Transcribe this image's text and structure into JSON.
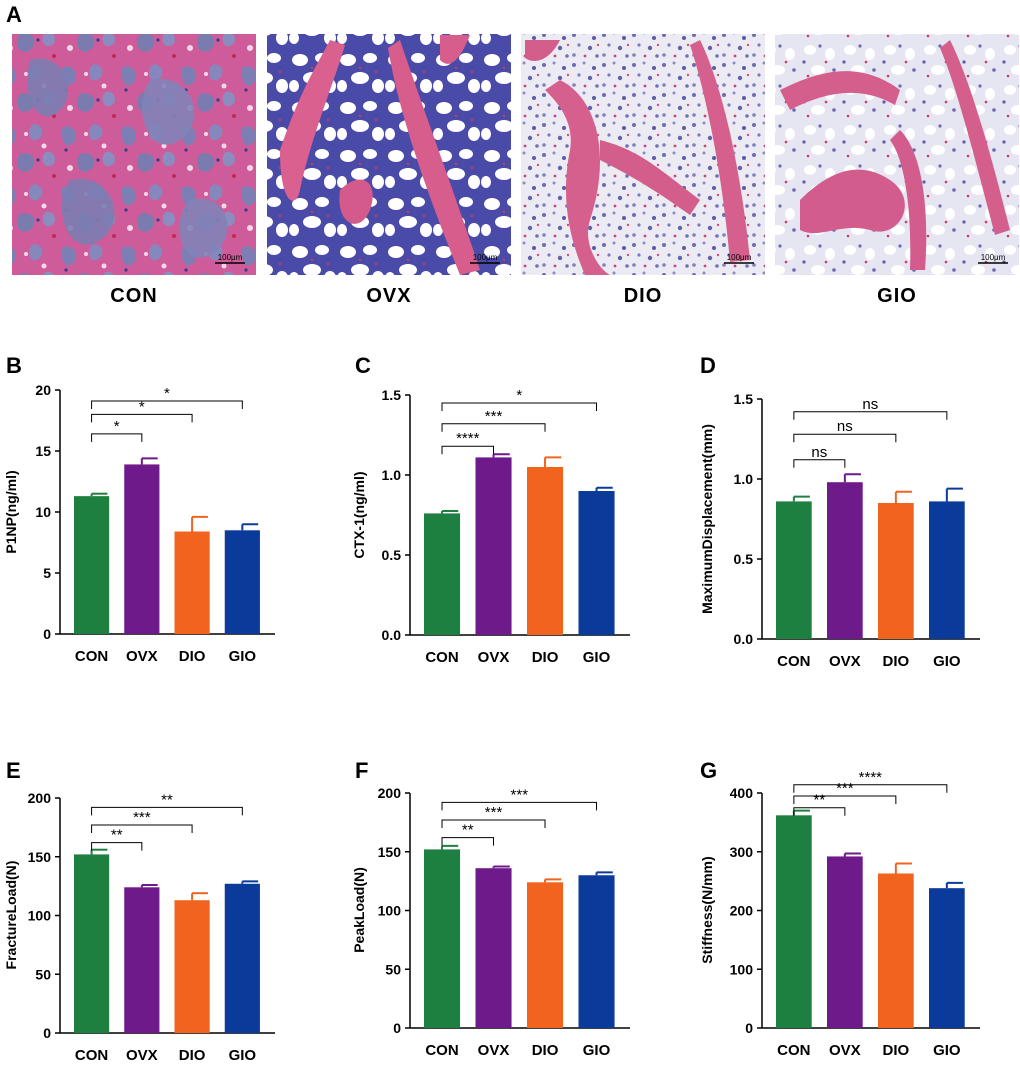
{
  "figure": {
    "panel_a": {
      "letter": "A",
      "images": [
        {
          "label": "CON",
          "scale": "100μm",
          "style": "dense"
        },
        {
          "label": "OVX",
          "scale": "100μm",
          "style": "ovx"
        },
        {
          "label": "DIO",
          "scale": "100μm",
          "style": "dio"
        },
        {
          "label": "GIO",
          "scale": "100μm",
          "style": "gio"
        }
      ]
    },
    "colors": {
      "CON": "#1e8040",
      "OVX": "#6f1a8a",
      "DIO": "#f0641e",
      "GIO": "#0a3a9a"
    }
  },
  "chart_data": [
    {
      "panel": "B",
      "type": "bar",
      "categories": [
        "CON",
        "OVX",
        "DIO",
        "GIO"
      ],
      "values": [
        11.3,
        13.9,
        8.4,
        8.5
      ],
      "errors": [
        0.2,
        0.5,
        1.2,
        0.5
      ],
      "ylabel": "P1NP(ng/ml)",
      "ylim": [
        0,
        20
      ],
      "yticks": [
        0,
        5,
        10,
        15,
        20
      ],
      "comparisons": [
        {
          "from": 0,
          "to": 1,
          "y": 16.4,
          "label": "*"
        },
        {
          "from": 0,
          "to": 2,
          "y": 18.0,
          "label": "*"
        },
        {
          "from": 0,
          "to": 3,
          "y": 19.1,
          "label": "*"
        }
      ]
    },
    {
      "panel": "C",
      "type": "bar",
      "categories": [
        "CON",
        "OVX",
        "DIO",
        "GIO"
      ],
      "values": [
        0.76,
        1.11,
        1.05,
        0.9
      ],
      "errors": [
        0.015,
        0.02,
        0.06,
        0.02
      ],
      "ylabel": "CTX-1(ng/ml)",
      "ylim": [
        0,
        1.5
      ],
      "yticks": [
        "0.0",
        "0.5",
        "1.0",
        "1.5"
      ],
      "comparisons": [
        {
          "from": 0,
          "to": 1,
          "y": 1.18,
          "label": "****"
        },
        {
          "from": 0,
          "to": 2,
          "y": 1.32,
          "label": "***"
        },
        {
          "from": 0,
          "to": 3,
          "y": 1.45,
          "label": "*"
        }
      ]
    },
    {
      "panel": "D",
      "type": "bar",
      "categories": [
        "CON",
        "OVX",
        "DIO",
        "GIO"
      ],
      "values": [
        0.86,
        0.98,
        0.85,
        0.86
      ],
      "errors": [
        0.03,
        0.05,
        0.07,
        0.08
      ],
      "ylabel": "MaximumDisplacement(mm)",
      "ylim": [
        0,
        1.5
      ],
      "yticks": [
        "0.0",
        "0.5",
        "1.0",
        "1.5"
      ],
      "comparisons": [
        {
          "from": 0,
          "to": 1,
          "y": 1.12,
          "label": "ns"
        },
        {
          "from": 0,
          "to": 2,
          "y": 1.28,
          "label": "ns"
        },
        {
          "from": 0,
          "to": 3,
          "y": 1.42,
          "label": "ns"
        }
      ]
    },
    {
      "panel": "E",
      "type": "bar",
      "categories": [
        "CON",
        "OVX",
        "DIO",
        "GIO"
      ],
      "values": [
        152,
        124,
        113,
        127
      ],
      "errors": [
        4,
        2,
        6,
        2
      ],
      "ylabel": "FractureLoad(N)",
      "ylim": [
        0,
        200
      ],
      "yticks": [
        0,
        50,
        100,
        150,
        200
      ],
      "comparisons": [
        {
          "from": 0,
          "to": 1,
          "y": 162,
          "label": "**"
        },
        {
          "from": 0,
          "to": 2,
          "y": 177,
          "label": "***"
        },
        {
          "from": 0,
          "to": 3,
          "y": 192,
          "label": "**"
        }
      ]
    },
    {
      "panel": "F",
      "type": "bar",
      "categories": [
        "CON",
        "OVX",
        "DIO",
        "GIO"
      ],
      "values": [
        152,
        136,
        124,
        130
      ],
      "errors": [
        3,
        1.5,
        2.5,
        2.5
      ],
      "ylabel": "PeakLoad(N)",
      "ylim": [
        0,
        200
      ],
      "yticks": [
        0,
        50,
        100,
        150,
        200
      ],
      "comparisons": [
        {
          "from": 0,
          "to": 1,
          "y": 162,
          "label": "**"
        },
        {
          "from": 0,
          "to": 2,
          "y": 177,
          "label": "***"
        },
        {
          "from": 0,
          "to": 3,
          "y": 192,
          "label": "***"
        }
      ]
    },
    {
      "panel": "G",
      "type": "bar",
      "categories": [
        "CON",
        "OVX",
        "DIO",
        "GIO"
      ],
      "values": [
        362,
        292,
        263,
        238
      ],
      "errors": [
        8,
        5,
        17,
        9
      ],
      "ylabel": "Stiffness(N/mm)",
      "ylim": [
        0,
        400
      ],
      "yticks": [
        0,
        100,
        200,
        300,
        400
      ],
      "comparisons": [
        {
          "from": 0,
          "to": 1,
          "y": 375,
          "label": "**"
        },
        {
          "from": 0,
          "to": 2,
          "y": 395,
          "label": "***"
        },
        {
          "from": 0,
          "to": 3,
          "y": 414,
          "label": "****"
        }
      ]
    }
  ]
}
